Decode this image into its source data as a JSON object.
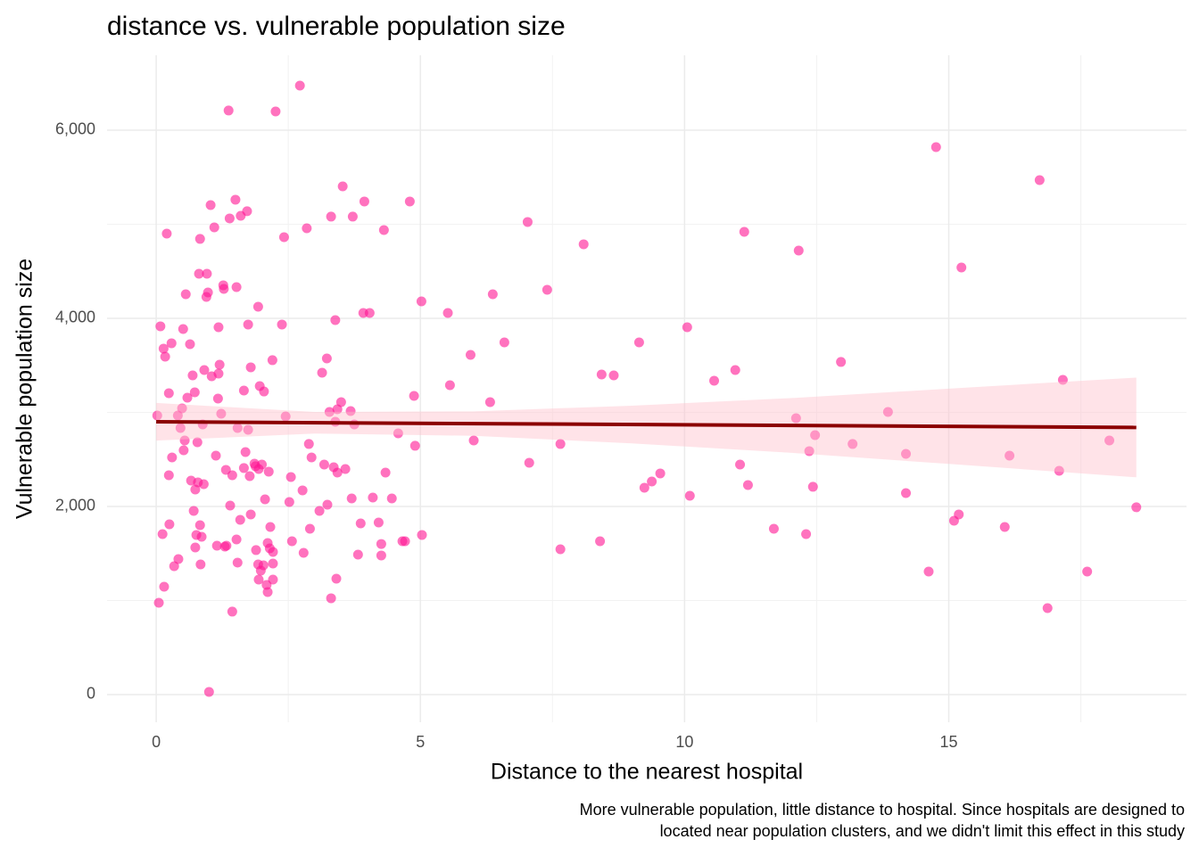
{
  "chart_data": {
    "type": "scatter",
    "title": "distance vs. vulnerable population size",
    "x_label": "Distance to the nearest hospital",
    "y_label": "Vulnerable population size",
    "caption": [
      "More vulnerable population, little distance to hospital. Since hospitals are designed to",
      "located near population clusters, and we didn't limit this effect in this study"
    ],
    "color": "#ff1493",
    "xlim": [
      -0.93,
      19.5
    ],
    "ylim": [
      -294,
      6796
    ],
    "xticks": [
      0,
      5,
      10,
      15
    ],
    "yticks": [
      0,
      {
        "value": 2000,
        "label": "2,000"
      },
      {
        "value": 4000,
        "label": "4,000"
      },
      {
        "value": 6000,
        "label": "6,000"
      }
    ],
    "x_minor_ticks": [
      2.5,
      7.5,
      12.5,
      17.5
    ],
    "y_minor_ticks": [
      1000,
      3000,
      5000
    ],
    "grid": true,
    "fit": {
      "color": "#8b0000",
      "x": [
        0,
        18.55
      ],
      "y": [
        2900,
        2840
      ]
    },
    "band": {
      "color": "#ffc0cb",
      "x": [
        0,
        3,
        6,
        9,
        12,
        15,
        18.55
      ],
      "lower": [
        2700,
        2775,
        2751,
        2671,
        2571,
        2452,
        2310
      ],
      "upper": [
        3100,
        3005,
        3011,
        3071,
        3151,
        3252,
        3370
      ]
    },
    "x": [
      0.02,
      0.08,
      0.05,
      0.12,
      0.14,
      0.17,
      0.15,
      0.2,
      0.24,
      0.24,
      0.25,
      0.29,
      0.3,
      0.34,
      0.42,
      0.41,
      0.46,
      0.49,
      0.51,
      0.54,
      0.56,
      0.52,
      0.59,
      0.64,
      0.66,
      0.69,
      0.71,
      0.73,
      0.74,
      0.74,
      0.76,
      0.78,
      0.79,
      0.81,
      0.83,
      0.83,
      0.84,
      0.86,
      0.88,
      0.9,
      0.91,
      0.95,
      0.96,
      0.98,
      1.0,
      1.03,
      1.05,
      1.1,
      1.13,
      1.15,
      1.17,
      1.18,
      1.18,
      1.2,
      1.23,
      1.27,
      1.28,
      1.3,
      1.32,
      1.33,
      1.37,
      1.39,
      1.4,
      1.44,
      1.44,
      1.5,
      1.52,
      1.52,
      1.54,
      1.54,
      1.59,
      1.6,
      1.66,
      1.66,
      1.69,
      1.72,
      1.74,
      1.74,
      1.77,
      1.79,
      1.79,
      1.86,
      1.88,
      1.89,
      1.93,
      1.93,
      1.94,
      1.94,
      1.96,
      1.98,
      2.0,
      2.03,
      2.04,
      2.06,
      2.09,
      2.11,
      2.11,
      2.13,
      2.15,
      2.16,
      2.2,
      2.21,
      2.21,
      2.21,
      2.26,
      2.38,
      2.42,
      2.45,
      2.52,
      2.55,
      2.57,
      2.72,
      2.77,
      2.79,
      2.85,
      2.89,
      2.91,
      2.94,
      3.09,
      3.14,
      3.18,
      3.23,
      3.24,
      3.28,
      3.31,
      3.31,
      3.36,
      3.39,
      3.39,
      3.41,
      3.43,
      3.43,
      3.5,
      3.53,
      3.58,
      3.68,
      3.7,
      3.72,
      3.75,
      3.82,
      3.87,
      3.92,
      3.94,
      4.04,
      4.1,
      4.21,
      4.26,
      4.26,
      4.31,
      4.34,
      4.46,
      4.58,
      4.66,
      4.71,
      4.8,
      4.88,
      4.9,
      5.02,
      5.03,
      5.52,
      5.56,
      5.95,
      6.01,
      6.32,
      6.37,
      6.59,
      7.03,
      7.06,
      7.4,
      7.65,
      7.65,
      8.09,
      8.4,
      8.43,
      8.66,
      9.14,
      9.24,
      9.38,
      9.54,
      10.05,
      10.1,
      10.56,
      10.96,
      11.05,
      11.13,
      11.2,
      11.69,
      12.11,
      12.16,
      12.3,
      12.36,
      12.43,
      12.47,
      12.96,
      13.18,
      13.85,
      14.19,
      14.19,
      14.62,
      14.76,
      15.1,
      15.19,
      15.24,
      16.06,
      16.15,
      16.72,
      16.87,
      17.09,
      17.16,
      17.62,
      18.04,
      18.55
    ],
    "y": [
      2967,
      3915,
      976,
      1706,
      3678,
      3592,
      1147,
      4900,
      3204,
      2332,
      1810,
      3735,
      2521,
      1365,
      1441,
      2967,
      2834,
      3043,
      3886,
      2701,
      4256,
      2597,
      3156,
      3725,
      2275,
      3393,
      1953,
      3213,
      2180,
      1564,
      1697,
      2682,
      2256,
      4474,
      4844,
      1801,
      1384,
      1678,
      2872,
      2237,
      3450,
      4227,
      4474,
      4275,
      28,
      5204,
      3384,
      4967,
      2540,
      1583,
      3147,
      3905,
      3412,
      3507,
      2986,
      4351,
      4313,
      1573,
      2389,
      1583,
      6209,
      5062,
      2009,
      882,
      2332,
      5261,
      4332,
      1649,
      1403,
      2834,
      1858,
      5090,
      3232,
      2408,
      2578,
      5138,
      2815,
      3934,
      2322,
      1915,
      3479,
      2455,
      2427,
      1536,
      4123,
      1384,
      2398,
      1223,
      3279,
      1318,
      2445,
      1374,
      3222,
      2076,
      1166,
      1611,
      1090,
      2370,
      1554,
      1782,
      3555,
      1223,
      1393,
      1517,
      6199,
      3934,
      4862,
      2957,
      2047,
      2313,
      1630,
      6474,
      2171,
      1507,
      4957,
      2664,
      1763,
      2521,
      1953,
      3422,
      2445,
      3573,
      2019,
      3005,
      5081,
      1024,
      2417,
      2900,
      3981,
      1232,
      3033,
      2360,
      3109,
      5403,
      2398,
      3014,
      2085,
      5081,
      2872,
      1488,
      1820,
      4057,
      5242,
      4057,
      2095,
      1829,
      1601,
      1479,
      4938,
      2360,
      2085,
      2777,
      1630,
      1630,
      5242,
      3175,
      2645,
      4180,
      1697,
      4057,
      3289,
      3611,
      2701,
      3109,
      4256,
      3744,
      5024,
      2464,
      4303,
      1545,
      2664,
      4787,
      1630,
      3403,
      3393,
      3744,
      2199,
      2265,
      2351,
      3905,
      2114,
      3336,
      3450,
      2445,
      4919,
      2227,
      1763,
      2938,
      4720,
      1706,
      2588,
      2209,
      2758,
      3536,
      2664,
      3005,
      2142,
      2559,
      1308,
      5820,
      1848,
      1915,
      4540,
      1782,
      2540,
      5469,
      919,
      2379,
      3346,
      1308,
      2701,
      1991
    ]
  }
}
